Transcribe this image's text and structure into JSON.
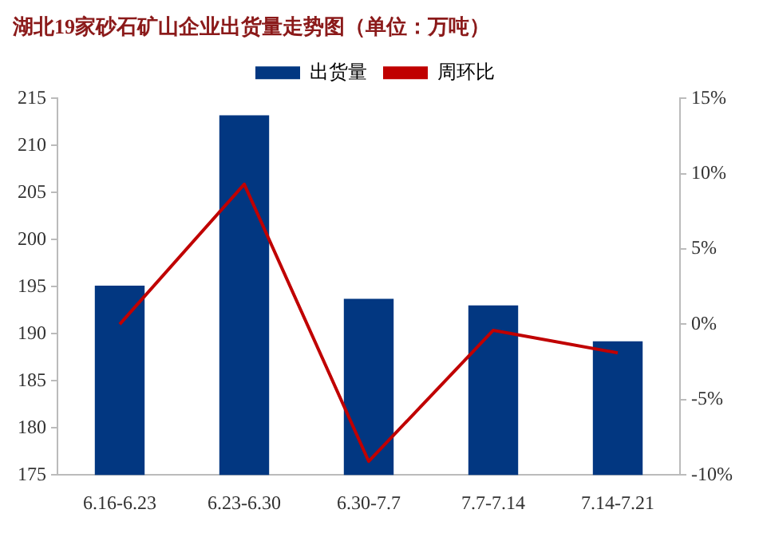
{
  "chart_data": {
    "type": "bar",
    "title": "湖北19家砂石矿山企业出货量走势图（单位：万吨）",
    "categories": [
      "6.16-6.23",
      "6.23-6.30",
      "6.30-7.7",
      "7.7-7.14",
      "7.14-7.21"
    ],
    "series": [
      {
        "name": "出货量",
        "color": "#023781",
        "values": [
          195.1,
          213.2,
          193.7,
          193.0,
          189.2
        ]
      },
      {
        "name": "周环比",
        "type": "line",
        "axis": "y2",
        "color": "#c00000",
        "values": [
          0.0,
          9.3,
          -9.1,
          -0.4,
          -1.9
        ]
      }
    ],
    "ylim": [
      175,
      215
    ],
    "yticks": [
      175,
      180,
      185,
      190,
      195,
      200,
      205,
      210,
      215
    ],
    "y2lim": [
      -10,
      15
    ],
    "y2ticks": [
      {
        "value": -10,
        "label": "-10%"
      },
      {
        "value": -5,
        "label": "-5%"
      },
      {
        "value": 0,
        "label": "0%"
      },
      {
        "value": 5,
        "label": "5%"
      },
      {
        "value": 10,
        "label": "10%"
      },
      {
        "value": 15,
        "label": "15%"
      }
    ],
    "grid": false,
    "legend": "top",
    "marker": "none"
  }
}
